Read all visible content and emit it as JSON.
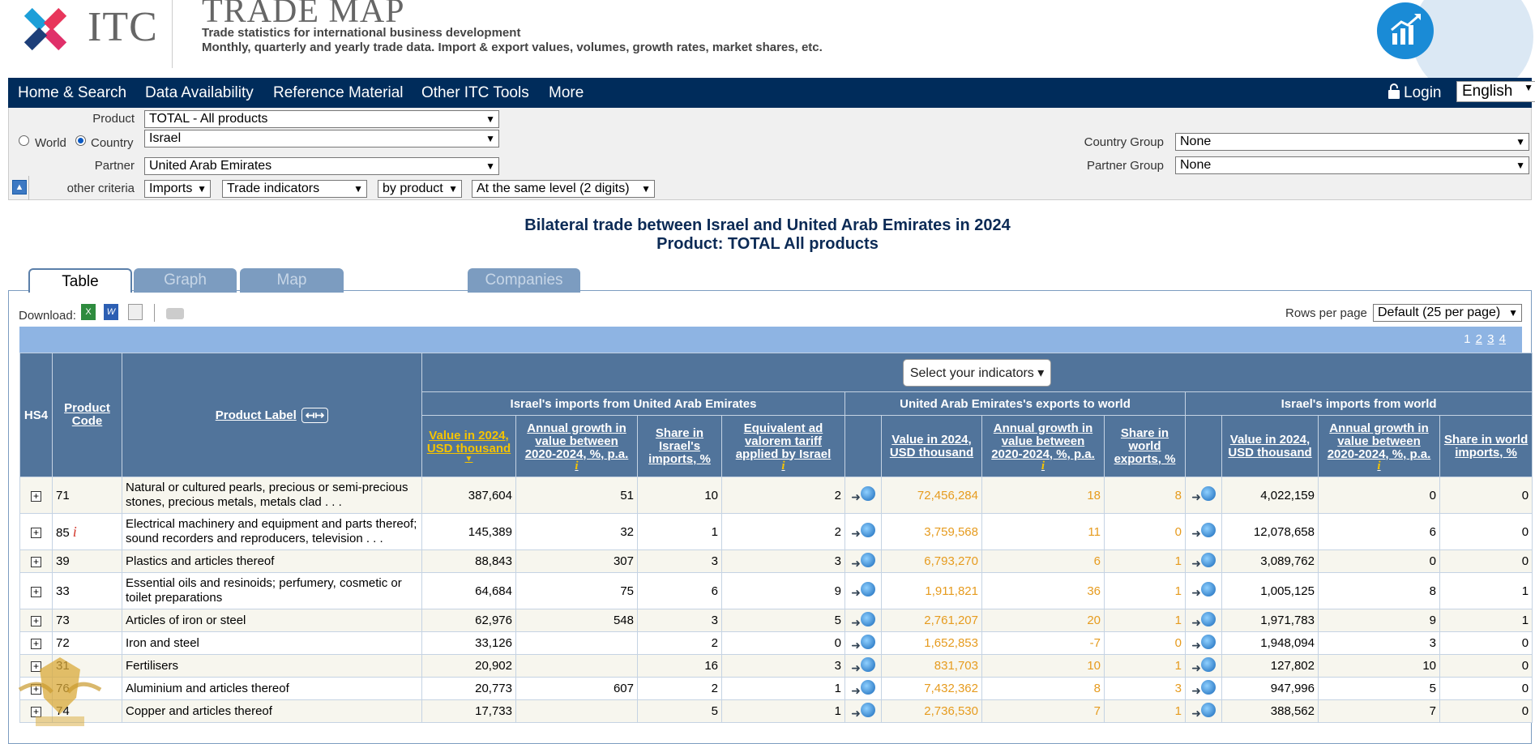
{
  "header": {
    "itc_name": "ITC",
    "app_title": "TRADE MAP",
    "subtitle1": "Trade statistics for international business development",
    "subtitle2": "Monthly, quarterly and yearly trade data. Import & export values, volumes, growth rates, market shares, etc."
  },
  "nav": {
    "items": [
      "Home & Search",
      "Data Availability",
      "Reference Material",
      "Other ITC Tools",
      "More"
    ],
    "login": "Login",
    "language": "English"
  },
  "criteria": {
    "product_label": "Product",
    "product_value": "TOTAL - All products",
    "world_label": "World",
    "country_label": "Country",
    "country_value": "Israel",
    "partner_label": "Partner",
    "partner_value": "United Arab Emirates",
    "other_label": "other criteria",
    "flow": "Imports",
    "indicators": "Trade indicators",
    "by": "by product",
    "level": "At the same level (2 digits)",
    "country_group_label": "Country Group",
    "country_group_value": "None",
    "partner_group_label": "Partner Group",
    "partner_group_value": "None"
  },
  "title": {
    "line1": "Bilateral trade between Israel and United Arab Emirates in 2024",
    "line2": "Product: TOTAL All products"
  },
  "tabs": [
    "Table",
    "Graph",
    "Map",
    "Companies"
  ],
  "toolbar": {
    "download_label": "Download:",
    "rows_label": "Rows per page",
    "rows_value": "Default (25 per page)",
    "pages": [
      "1",
      "2",
      "3",
      "4"
    ]
  },
  "table": {
    "h_hs4": "HS4",
    "h_code": "Product Code",
    "h_label": "Product Label",
    "select_indicators": "Select your indicators",
    "g1": "Israel's imports from United Arab Emirates",
    "g2": "United Arab Emirates's exports to world",
    "g3": "Israel's imports from world",
    "c_value": "Value in 2024, USD thousand",
    "c_growth": "Annual growth in value between 2020-2024, %, p.a.",
    "c_share_isr": "Share in Israel's imports, %",
    "c_tariff": "Equivalent ad valorem tariff applied by Israel",
    "c_share_world_exp": "Share in world exports, %",
    "c_share_world_imp": "Share in world imports, %",
    "rows": [
      {
        "code": "71",
        "info": "",
        "label": "Natural or cultured pearls, precious or semi-precious stones, precious metals, metals clad . . .",
        "v1": "387,604",
        "g1": "51",
        "s1": "10",
        "t1": "2",
        "v2": "72,456,284",
        "g2": "18",
        "s2": "8",
        "v3": "4,022,159",
        "g3": "0",
        "s3": "0"
      },
      {
        "code": "85",
        "info": "i",
        "label": "Electrical machinery and equipment and parts thereof; sound recorders and reproducers, television . . .",
        "v1": "145,389",
        "g1": "32",
        "s1": "1",
        "t1": "2",
        "v2": "3,759,568",
        "g2": "11",
        "s2": "0",
        "v3": "12,078,658",
        "g3": "6",
        "s3": "0"
      },
      {
        "code": "39",
        "info": "",
        "label": "Plastics and articles thereof",
        "v1": "88,843",
        "g1": "307",
        "s1": "3",
        "t1": "3",
        "v2": "6,793,270",
        "g2": "6",
        "s2": "1",
        "v3": "3,089,762",
        "g3": "0",
        "s3": "0"
      },
      {
        "code": "33",
        "info": "",
        "label": "Essential oils and resinoids; perfumery, cosmetic or toilet preparations",
        "v1": "64,684",
        "g1": "75",
        "s1": "6",
        "t1": "9",
        "v2": "1,911,821",
        "g2": "36",
        "s2": "1",
        "v3": "1,005,125",
        "g3": "8",
        "s3": "1"
      },
      {
        "code": "73",
        "info": "",
        "label": "Articles of iron or steel",
        "v1": "62,976",
        "g1": "548",
        "s1": "3",
        "t1": "5",
        "v2": "2,761,207",
        "g2": "20",
        "s2": "1",
        "v3": "1,971,783",
        "g3": "9",
        "s3": "1"
      },
      {
        "code": "72",
        "info": "",
        "label": "Iron and steel",
        "v1": "33,126",
        "g1": "",
        "s1": "2",
        "t1": "0",
        "v2": "1,652,853",
        "g2": "-7",
        "s2": "0",
        "v3": "1,948,094",
        "g3": "3",
        "s3": "0"
      },
      {
        "code": "31",
        "info": "",
        "label": "Fertilisers",
        "v1": "20,902",
        "g1": "",
        "s1": "16",
        "t1": "3",
        "v2": "831,703",
        "g2": "10",
        "s2": "1",
        "v3": "127,802",
        "g3": "10",
        "s3": "0"
      },
      {
        "code": "76",
        "info": "",
        "label": "Aluminium and articles thereof",
        "v1": "20,773",
        "g1": "607",
        "s1": "2",
        "t1": "1",
        "v2": "7,432,362",
        "g2": "8",
        "s2": "3",
        "v3": "947,996",
        "g3": "5",
        "s3": "0"
      },
      {
        "code": "74",
        "info": "",
        "label": "Copper and articles thereof",
        "v1": "17,733",
        "g1": "",
        "s1": "5",
        "t1": "1",
        "v2": "2,736,530",
        "g2": "7",
        "s2": "1",
        "v3": "388,562",
        "g3": "7",
        "s3": "0"
      }
    ]
  }
}
